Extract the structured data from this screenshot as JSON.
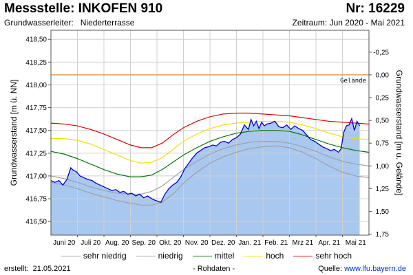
{
  "header": {
    "title": "Messstelle: INKOFEN 910",
    "number": "Nr: 16229",
    "aquifer_label": "Grundwasserleiter:",
    "aquifer_value": "Niederterrasse",
    "period": "Zeitraum: Jun 2020 - Mai 2021"
  },
  "footer": {
    "created_label": "erstellt:",
    "created_date": "21.05.2021",
    "note": "- Rohdaten -",
    "source_label": "Quelle:",
    "source_url": "www.lfu.bayern.de"
  },
  "colors": {
    "fill": "#a8c8f0",
    "measured": "#0000cc",
    "sehr_niedrig": "#a0a0a0",
    "niedrig": "#a0a0a0",
    "mittel": "#007700",
    "hoch": "#f0e000",
    "sehr_hoch": "#dd0000",
    "gelaende": "#e08a30",
    "grid": "#d0d0d0"
  },
  "chart_data": {
    "type": "line",
    "ylabel": "Grundwasserstand [m ü. NN]",
    "ylabel_right": "Grundwasserstand [m u. Gelände]",
    "ylim": [
      416.35,
      418.6
    ],
    "yticks": [
      "416,50",
      "416,75",
      "417,00",
      "417,25",
      "417,50",
      "417,75",
      "418,00",
      "418,25",
      "418,50"
    ],
    "ytick_values": [
      416.5,
      416.75,
      417.0,
      417.25,
      417.5,
      417.75,
      418.0,
      418.25,
      418.5
    ],
    "yticks_right": [
      "-0,25",
      "0,00",
      "0,25",
      "0,50",
      "0,75",
      "1,00",
      "1,25",
      "1,50",
      "1,75"
    ],
    "ytick_right_values": [
      -0.25,
      0.0,
      0.25,
      0.5,
      0.75,
      1.0,
      1.25,
      1.5,
      1.75
    ],
    "ground_level": 418.11,
    "ground_label": "Gelände",
    "xlim": [
      0,
      12
    ],
    "xticks": [
      "Juni 20",
      "Juli 20",
      "Aug. 20",
      "Sep. 20",
      "Okt. 20",
      "Nov. 20",
      "Dez. 20",
      "Jan. 21",
      "Feb. 21",
      "Mrz 21",
      "Apr. 21",
      "Mai 21"
    ],
    "xtick_values": [
      0.5,
      1.5,
      2.5,
      3.5,
      4.5,
      5.5,
      6.5,
      7.5,
      8.5,
      9.5,
      10.5,
      11.5
    ],
    "month_boundaries": [
      1,
      2,
      3,
      4,
      5,
      6,
      7,
      8,
      9,
      10,
      11
    ],
    "legend": [
      {
        "key": "sehr_niedrig",
        "label": "sehr niedrig"
      },
      {
        "key": "niedrig",
        "label": "niedrig"
      },
      {
        "key": "mittel",
        "label": "mittel"
      },
      {
        "key": "hoch",
        "label": "hoch"
      },
      {
        "key": "sehr_hoch",
        "label": "sehr hoch"
      }
    ],
    "series": [
      {
        "key": "sehr_hoch",
        "name": "sehr hoch",
        "x": [
          0,
          0.5,
          1,
          1.5,
          2,
          2.5,
          3,
          3.4,
          3.8,
          4.2,
          4.6,
          5,
          5.5,
          6,
          6.5,
          7,
          7.5,
          8,
          8.5,
          9,
          9.5,
          10,
          10.5,
          11,
          11.5,
          12
        ],
        "y": [
          417.58,
          417.57,
          417.55,
          417.51,
          417.46,
          417.4,
          417.34,
          417.31,
          417.31,
          417.36,
          417.45,
          417.53,
          417.6,
          417.65,
          417.68,
          417.69,
          417.69,
          417.68,
          417.67,
          417.66,
          417.64,
          417.62,
          417.6,
          417.59,
          417.58,
          417.57
        ]
      },
      {
        "key": "hoch",
        "name": "hoch",
        "x": [
          0,
          0.5,
          1,
          1.5,
          2,
          2.5,
          3,
          3.4,
          3.8,
          4.2,
          4.6,
          5,
          5.5,
          6,
          6.5,
          7,
          7.5,
          8,
          8.5,
          9,
          9.5,
          10,
          10.5,
          11,
          11.5,
          12
        ],
        "y": [
          417.41,
          417.41,
          417.39,
          417.35,
          417.29,
          417.23,
          417.17,
          417.14,
          417.15,
          417.2,
          417.29,
          417.38,
          417.46,
          417.52,
          417.56,
          417.58,
          417.59,
          417.6,
          417.6,
          417.59,
          417.56,
          417.52,
          417.47,
          417.43,
          417.41,
          417.4
        ]
      },
      {
        "key": "mittel",
        "name": "mittel",
        "x": [
          0,
          0.5,
          1,
          1.5,
          2,
          2.5,
          3,
          3.4,
          3.8,
          4.2,
          4.6,
          5,
          5.5,
          6,
          6.5,
          7,
          7.5,
          8,
          8.5,
          9,
          9.5,
          10,
          10.5,
          11,
          11.5,
          12
        ],
        "y": [
          417.27,
          417.24,
          417.19,
          417.13,
          417.07,
          417.02,
          416.99,
          416.99,
          417.01,
          417.07,
          417.15,
          417.23,
          417.31,
          417.38,
          417.43,
          417.47,
          417.49,
          417.5,
          417.5,
          417.49,
          417.45,
          417.4,
          417.35,
          417.31,
          417.28,
          417.26
        ]
      },
      {
        "key": "niedrig",
        "name": "niedrig",
        "x": [
          0,
          0.5,
          1,
          1.5,
          2,
          2.5,
          3,
          3.4,
          3.8,
          4.2,
          4.6,
          5,
          5.5,
          6,
          6.5,
          7,
          7.5,
          8,
          8.5,
          9,
          9.5,
          10,
          10.5,
          11,
          11.5,
          12
        ],
        "y": [
          417.0,
          416.97,
          416.93,
          416.88,
          416.84,
          416.81,
          416.8,
          416.8,
          416.83,
          416.89,
          416.98,
          417.07,
          417.16,
          417.24,
          417.3,
          417.34,
          417.37,
          417.38,
          417.38,
          417.36,
          417.32,
          417.27,
          417.21,
          417.16,
          417.13,
          417.11
        ]
      },
      {
        "key": "sehr_niedrig",
        "name": "sehr niedrig",
        "x": [
          0,
          0.5,
          1,
          1.5,
          2,
          2.5,
          3,
          3.4,
          3.8,
          4.2,
          4.6,
          5,
          5.5,
          6,
          6.5,
          7,
          7.5,
          8,
          8.5,
          9,
          9.5,
          10,
          10.5,
          11,
          11.5,
          12
        ],
        "y": [
          416.93,
          416.9,
          416.86,
          416.81,
          416.77,
          416.73,
          416.7,
          416.68,
          416.68,
          416.71,
          416.8,
          416.92,
          417.04,
          417.14,
          417.21,
          417.26,
          417.3,
          417.32,
          417.33,
          417.31,
          417.26,
          417.19,
          417.11,
          417.04,
          417.0,
          416.98
        ]
      },
      {
        "key": "measured",
        "name": "",
        "x": [
          0,
          0.15,
          0.3,
          0.45,
          0.6,
          0.75,
          0.85,
          0.95,
          1.1,
          1.25,
          1.4,
          1.55,
          1.7,
          1.85,
          2.0,
          2.15,
          2.3,
          2.45,
          2.6,
          2.75,
          2.9,
          3.05,
          3.2,
          3.35,
          3.5,
          3.65,
          3.8,
          3.95,
          4.05,
          4.15,
          4.3,
          4.45,
          4.6,
          4.75,
          4.9,
          5.05,
          5.2,
          5.35,
          5.5,
          5.65,
          5.8,
          5.95,
          6.1,
          6.25,
          6.4,
          6.55,
          6.7,
          6.85,
          7.0,
          7.15,
          7.3,
          7.45,
          7.55,
          7.65,
          7.75,
          7.85,
          7.95,
          8.05,
          8.15,
          8.3,
          8.45,
          8.6,
          8.75,
          8.9,
          9.05,
          9.2,
          9.35,
          9.5,
          9.65,
          9.8,
          9.95,
          10.1,
          10.25,
          10.4,
          10.55,
          10.7,
          10.85,
          10.95,
          11.05,
          11.15,
          11.25,
          11.35,
          11.45,
          11.55,
          11.65
        ],
        "y": [
          416.95,
          416.93,
          416.95,
          416.9,
          416.96,
          417.09,
          417.06,
          417.05,
          417.0,
          416.98,
          416.96,
          416.95,
          416.92,
          416.9,
          416.88,
          416.86,
          416.84,
          416.85,
          416.82,
          416.83,
          416.8,
          416.81,
          416.78,
          416.8,
          416.76,
          416.78,
          416.75,
          416.73,
          416.72,
          416.71,
          416.8,
          416.86,
          416.9,
          416.93,
          416.99,
          417.08,
          417.14,
          417.2,
          417.25,
          417.28,
          417.31,
          417.32,
          417.34,
          417.33,
          417.37,
          417.38,
          417.36,
          417.4,
          417.42,
          417.46,
          417.56,
          417.51,
          417.62,
          417.55,
          417.6,
          417.52,
          417.59,
          417.55,
          417.57,
          417.58,
          417.6,
          417.54,
          417.53,
          417.56,
          417.51,
          417.55,
          417.52,
          417.5,
          417.45,
          417.4,
          417.38,
          417.35,
          417.32,
          417.3,
          417.28,
          417.29,
          417.26,
          417.3,
          417.48,
          417.55,
          417.56,
          417.63,
          417.5,
          417.6,
          417.55
        ]
      }
    ]
  }
}
